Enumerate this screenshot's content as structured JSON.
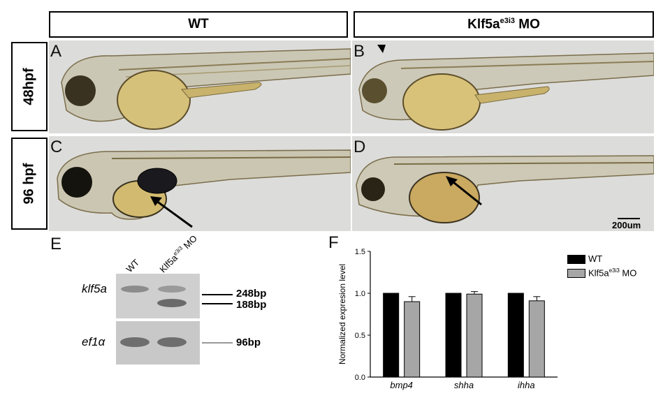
{
  "figure": {
    "col_headers": {
      "wt": "WT",
      "mo_prefix": "Klf5a",
      "mo_sup": "e3i3",
      "mo_suffix": " MO"
    },
    "row_headers": {
      "hpf48": "48hpf",
      "hpf96": "96 hpf"
    },
    "panel_letters": {
      "a": "A",
      "b": "B",
      "c": "C",
      "d": "D",
      "e": "E",
      "f": "F"
    },
    "scale_bar": "200um",
    "gel": {
      "lane_wt": "WT",
      "lane_mo_prefix": "Klf5a",
      "lane_mo_sup": "e3i3",
      "lane_mo_suffix": " MO",
      "gene_top": "klf5a",
      "gene_bottom": "ef1α",
      "band_248": "248bp",
      "band_188": "188bp",
      "band_96": "96bp"
    }
  },
  "chart_data": {
    "type": "bar",
    "ylabel": "Normalized expresion level",
    "ylim": [
      0,
      1.5
    ],
    "yticks": [
      "0.0",
      "0.5",
      "1.0",
      "1.5"
    ],
    "categories": [
      "bmp4",
      "shha",
      "ihha"
    ],
    "series": [
      {
        "name": "WT",
        "values": [
          1.0,
          1.0,
          1.0
        ],
        "errors": [
          0,
          0,
          0
        ],
        "color": "#000000"
      },
      {
        "name": "Klf5a",
        "name_sup": "e3i3",
        "name_suffix": " MO",
        "values": [
          0.9,
          0.99,
          0.91
        ],
        "errors": [
          0.06,
          0.03,
          0.05
        ],
        "color": "#a6a6a6"
      }
    ],
    "legend": "top-right"
  }
}
